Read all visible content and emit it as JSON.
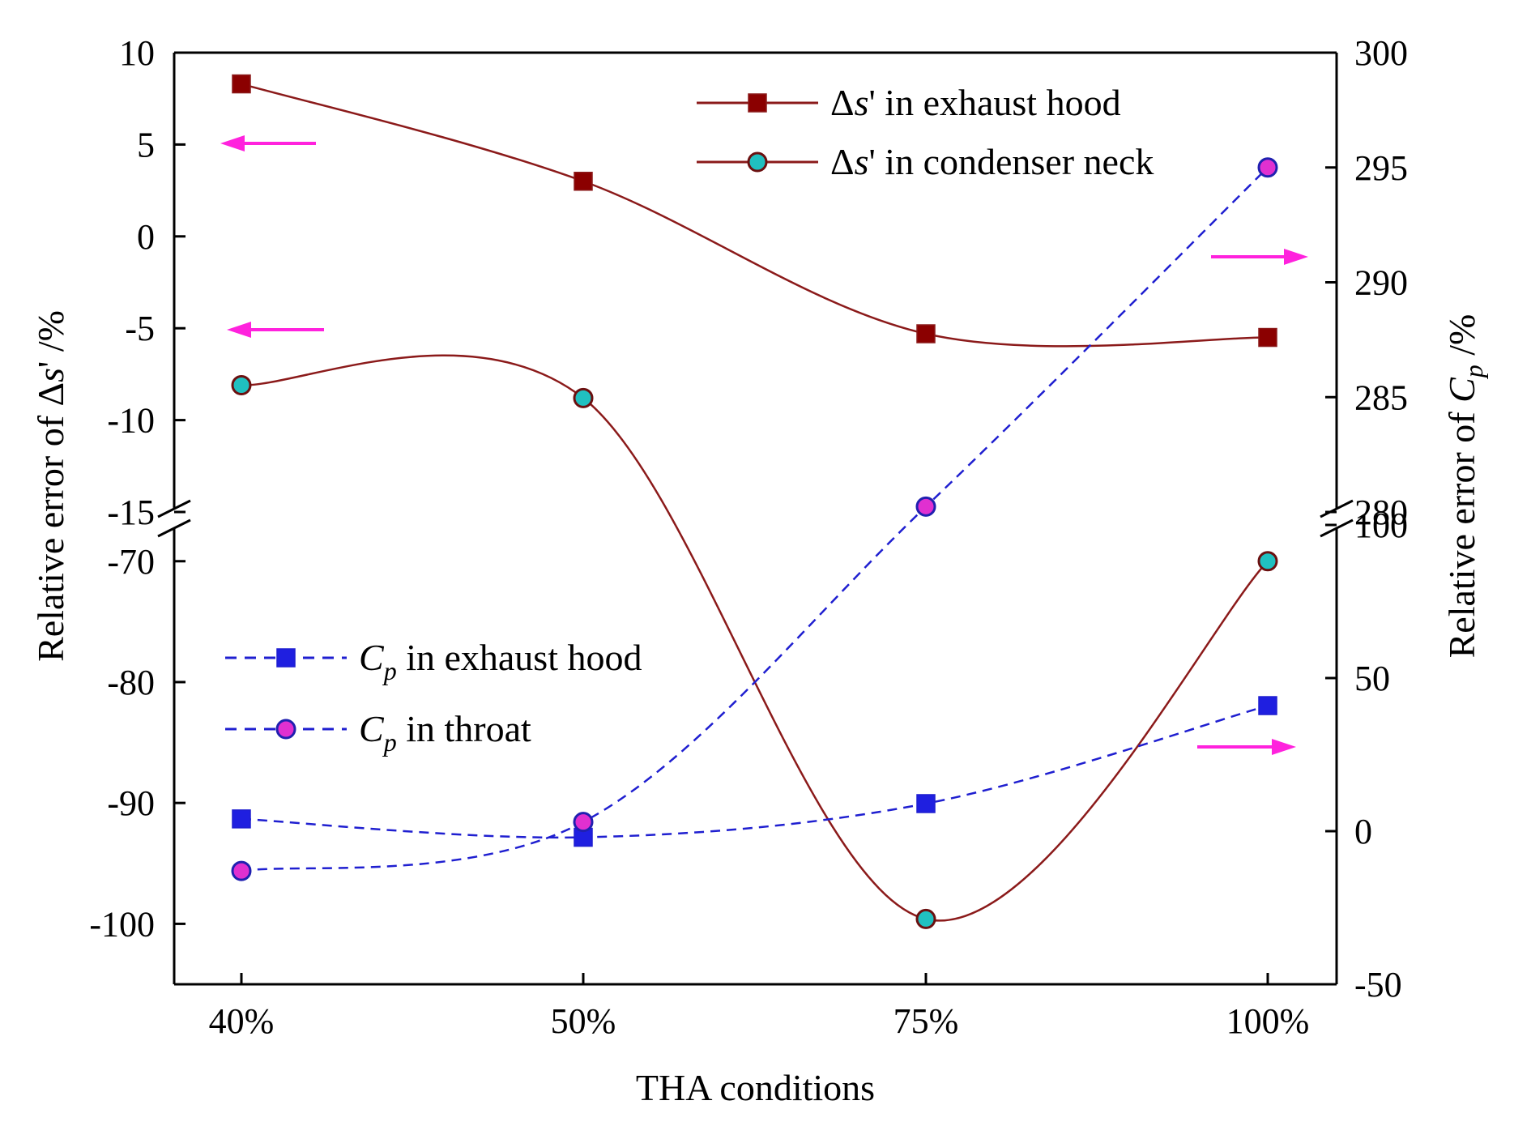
{
  "chart_data": {
    "type": "line",
    "xlabel": "THA conditions",
    "categories": [
      "40%",
      "50%",
      "75%",
      "100%"
    ],
    "left_axis": {
      "label_prefix": "Relative error of Δ",
      "label_italic": "s",
      "label_suffix": "' /%",
      "broken": true,
      "upper_segment": {
        "range": [
          -15,
          10
        ],
        "ticks": [
          "10",
          "5",
          "0",
          "-5",
          "-10",
          "-15"
        ]
      },
      "lower_segment": {
        "range": [
          -105,
          -67
        ],
        "ticks": [
          "-70",
          "-80",
          "-90",
          "-100"
        ]
      }
    },
    "right_axis": {
      "label_prefix": "Relative error of ",
      "label_italic": "C",
      "label_sub": "p",
      "label_suffix": " /%",
      "broken": true,
      "upper_segment": {
        "range": [
          280,
          300
        ],
        "ticks": [
          "300",
          "295",
          "290",
          "285",
          "280"
        ]
      },
      "lower_segment": {
        "range": [
          -50,
          100
        ],
        "ticks": [
          "100",
          "50",
          "0",
          "-50"
        ]
      }
    },
    "series": [
      {
        "name": "Δs' in exhaust hood",
        "legend": {
          "prefix": "Δ",
          "italic": "s",
          "suffix": "' in exhaust hood"
        },
        "axis": "left",
        "marker": "square",
        "line": "solid",
        "color": "#8b1a1a",
        "marker_fill": "#8b0000",
        "values": [
          8.3,
          3.0,
          -5.3,
          -5.5
        ]
      },
      {
        "name": "Δs' in condenser neck",
        "legend": {
          "prefix": "Δ",
          "italic": "s",
          "suffix": "' in condenser neck"
        },
        "axis": "left",
        "marker": "circle",
        "line": "solid",
        "color": "#8b1a1a",
        "marker_fill": "#20c0c0",
        "values": [
          -8.1,
          -8.8,
          -99.6,
          -70.0
        ]
      },
      {
        "name": "Cp in exhaust hood",
        "legend": {
          "prefix": "",
          "italic": "C",
          "sub": "p",
          "suffix": " in exhaust hood"
        },
        "axis": "right",
        "marker": "square",
        "line": "dashed",
        "color": "#1f1fd0",
        "marker_fill": "#1f1fe0",
        "values": [
          4,
          -2,
          9,
          41
        ]
      },
      {
        "name": "Cp in throat",
        "legend": {
          "prefix": "",
          "italic": "C",
          "sub": "p",
          "suffix": " in throat"
        },
        "axis": "right",
        "marker": "circle",
        "line": "dashed",
        "color": "#1f1fd0",
        "marker_fill": "#e030d0",
        "values": [
          -13,
          3,
          106,
          295
        ]
      }
    ],
    "colors": {
      "arrow": "#ff22dd",
      "axis": "#000000"
    }
  }
}
